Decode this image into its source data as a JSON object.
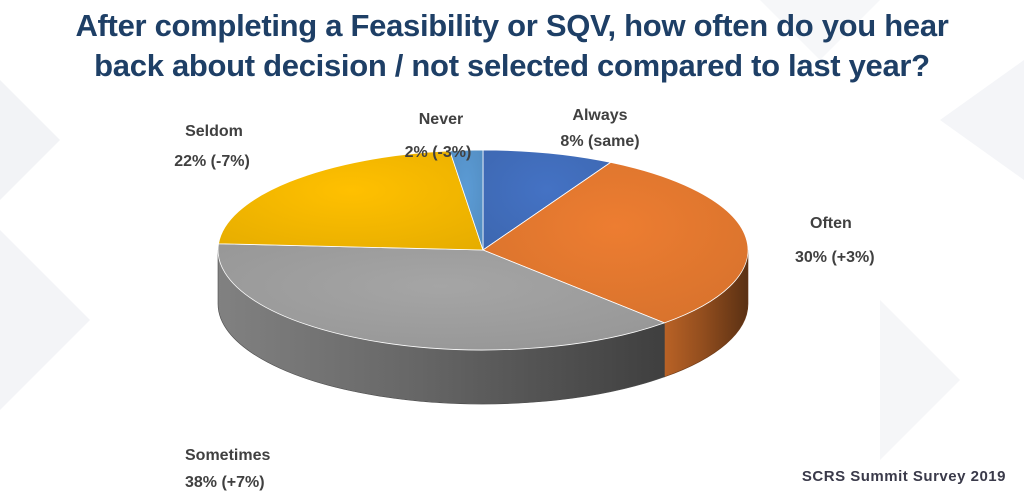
{
  "title_lines": [
    "After completing a Feasibility or SQV, how often do you hear",
    "back about decision / not selected compared to last year?"
  ],
  "source": "SCRS Summit Survey 2019",
  "chart_data": {
    "type": "pie",
    "three_d": true,
    "start": "12 o'clock, clockwise",
    "slices": [
      {
        "name": "Always",
        "value": 8,
        "change": "8% (same)",
        "color": "#4472c4"
      },
      {
        "name": "Often",
        "value": 30,
        "change": "30%  (+3%)",
        "color": "#ed7d31"
      },
      {
        "name": "Sometimes",
        "value": 38,
        "change": "38% (+7%)",
        "color": "#a5a5a5"
      },
      {
        "name": "Seldom",
        "value": 22,
        "change": "22%  (-7%)",
        "color": "#ffc000"
      },
      {
        "name": "Never",
        "value": 2,
        "change": "2%  (-3%)",
        "color": "#5b9bd5"
      }
    ]
  }
}
